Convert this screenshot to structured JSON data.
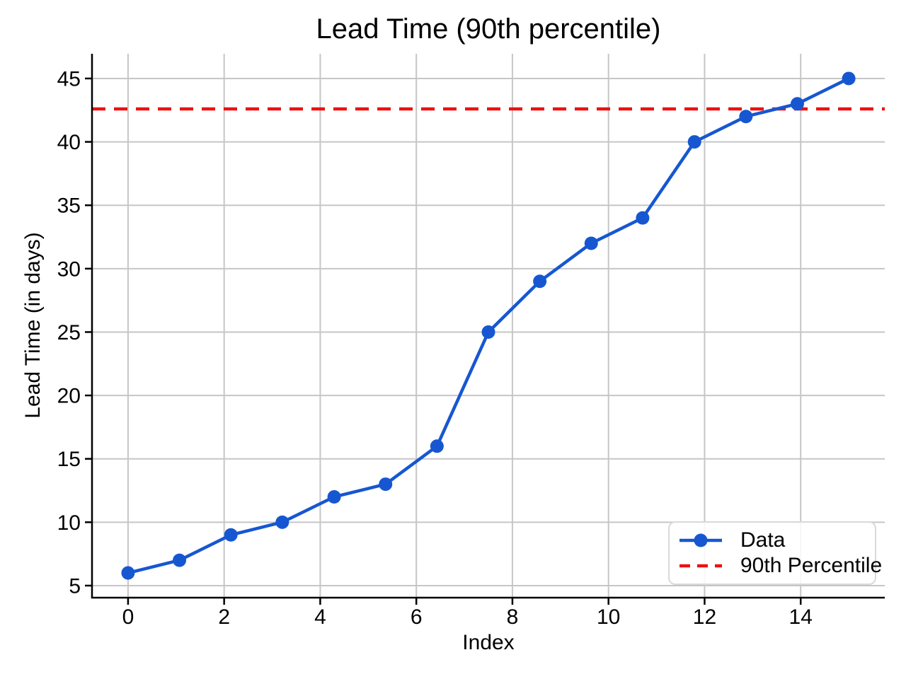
{
  "figure_title": "Lead Time (90th percentile)",
  "colors": {
    "line": "#1657d1",
    "percentile": "#ee1111",
    "grid": "#c6c6c6",
    "axis": "#000000",
    "text": "#000000",
    "legend_border": "#d9d9d9",
    "background": "#ffffff"
  },
  "legend": {
    "position": "lower right",
    "items": [
      {
        "label": "Data"
      },
      {
        "label": "90th Percentile"
      }
    ]
  },
  "chart_data": {
    "type": "line",
    "title": "Lead Time (90th percentile)",
    "xlabel": "Index",
    "ylabel": "Lead Time (in days)",
    "x": [
      0,
      1.07,
      2.14,
      3.21,
      4.29,
      5.36,
      6.43,
      7.5,
      8.57,
      9.64,
      10.71,
      11.79,
      12.86,
      13.93,
      15
    ],
    "series": [
      {
        "name": "Data",
        "style": "solid-line-with-markers",
        "color": "#1657d1",
        "values": [
          6,
          7,
          9,
          10,
          12,
          13,
          16,
          25,
          29,
          32,
          34,
          40,
          42,
          43,
          45
        ]
      },
      {
        "name": "90th Percentile",
        "style": "dashed-horizontal-line",
        "color": "#ee1111",
        "value": 42.6
      }
    ],
    "xticks": [
      0,
      2,
      4,
      6,
      8,
      10,
      12,
      14
    ],
    "yticks": [
      5,
      10,
      15,
      20,
      25,
      30,
      35,
      40,
      45
    ],
    "xlim": [
      -0.75,
      15.75
    ],
    "ylim": [
      4.05,
      46.95
    ],
    "grid": true,
    "legend_position": "lower right"
  }
}
